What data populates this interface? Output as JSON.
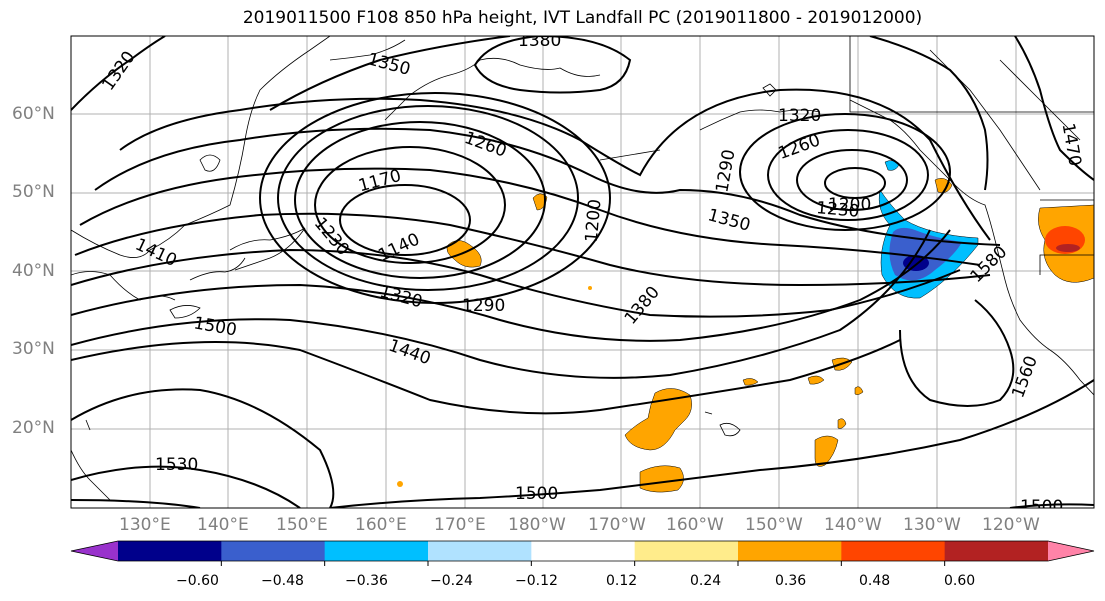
{
  "title": "2019011500 F108 850 hPa height, IVT Landfall PC (2019011800 - 2019012000)",
  "lat_labels": [
    "60°N",
    "50°N",
    "40°N",
    "30°N",
    "20°N"
  ],
  "lon_labels": [
    "130°E",
    "140°E",
    "150°E",
    "160°E",
    "170°E",
    "180°W",
    "170°W",
    "160°W",
    "150°W",
    "140°W",
    "130°W",
    "120°W"
  ],
  "contour_labels": [
    "1380",
    "1320",
    "1350",
    "1320",
    "1260",
    "1470",
    "1170",
    "1260",
    "1290",
    "1200",
    "1230",
    "1350",
    "1410",
    "1230",
    "1140",
    "1200",
    "1580",
    "1320",
    "1290",
    "1380",
    "1500",
    "1440",
    "1560",
    "1530",
    "1500",
    "1500"
  ],
  "colorbar": {
    "colors": [
      "#9932cc",
      "#00008b",
      "#3a5fcd",
      "#00bfff",
      "#b0e2ff",
      "#ffffff",
      "#ffec8b",
      "#ffa500",
      "#ff4500",
      "#b22222",
      "#ff83a8"
    ],
    "tick_labels": [
      "−0.60",
      "−0.48",
      "−0.36",
      "−0.24",
      "−0.12",
      "0.12",
      "0.24",
      "0.36",
      "0.48",
      "0.60"
    ]
  }
}
